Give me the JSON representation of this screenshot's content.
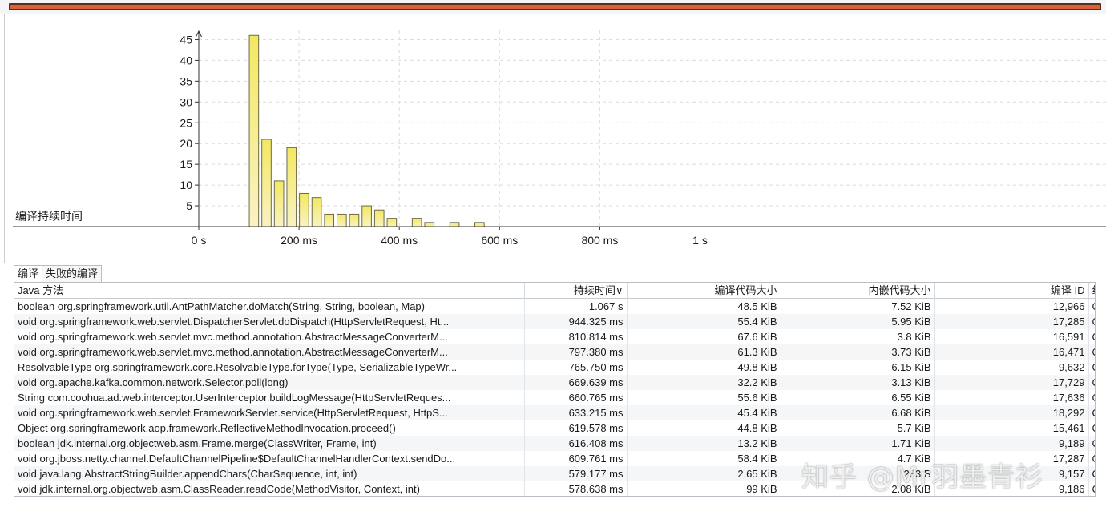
{
  "colors": {
    "bar_fill_top": "#f3e862",
    "bar_fill_bottom": "#f8f2c4",
    "bar_stroke": "#6e6a46",
    "accent_bar": "#d8613a",
    "grid": "#dcdcdc"
  },
  "chart_data": {
    "type": "bar",
    "ylabel": "编译持续时间",
    "x_tick_labels": [
      "0 s",
      "200 ms",
      "400 ms",
      "600 ms",
      "800 ms",
      "1 s"
    ],
    "x_tick_values_ms": [
      0,
      200,
      400,
      600,
      800,
      1000
    ],
    "y_ticks": [
      5,
      10,
      15,
      20,
      25,
      30,
      35,
      40,
      45
    ],
    "ylim": [
      0,
      47
    ],
    "xlim_ms": [
      0,
      1075
    ],
    "bin_width_ms": 25,
    "bins": [
      {
        "start_ms": 100,
        "count": 46
      },
      {
        "start_ms": 125,
        "count": 21
      },
      {
        "start_ms": 150,
        "count": 11
      },
      {
        "start_ms": 175,
        "count": 19
      },
      {
        "start_ms": 200,
        "count": 8
      },
      {
        "start_ms": 225,
        "count": 7
      },
      {
        "start_ms": 250,
        "count": 3
      },
      {
        "start_ms": 275,
        "count": 3
      },
      {
        "start_ms": 300,
        "count": 3
      },
      {
        "start_ms": 325,
        "count": 5
      },
      {
        "start_ms": 350,
        "count": 4
      },
      {
        "start_ms": 375,
        "count": 2
      },
      {
        "start_ms": 425,
        "count": 2
      },
      {
        "start_ms": 450,
        "count": 1
      },
      {
        "start_ms": 500,
        "count": 1
      },
      {
        "start_ms": 550,
        "count": 1
      }
    ],
    "grid": true,
    "legend": "none"
  },
  "tabs": [
    {
      "label": "编译",
      "active": true
    },
    {
      "label": "失败的编译",
      "active": false
    }
  ],
  "table": {
    "columns": [
      {
        "label": "Java 方法",
        "align": "l"
      },
      {
        "label": "持续时间∨",
        "align": "r"
      },
      {
        "label": "编译代码大小",
        "align": "r"
      },
      {
        "label": "内嵌代码大小",
        "align": "r"
      },
      {
        "label": "编译 ID",
        "align": "r"
      },
      {
        "label": "线",
        "align": "l"
      }
    ],
    "rows": [
      [
        "boolean org.springframework.util.AntPathMatcher.doMatch(String, String, boolean, Map)",
        "1.067 s",
        "48.5 KiB",
        "7.52 KiB",
        "12,966",
        "C"
      ],
      [
        "void org.springframework.web.servlet.DispatcherServlet.doDispatch(HttpServletRequest, Ht...",
        "944.325 ms",
        "55.4 KiB",
        "5.95 KiB",
        "17,285",
        "C"
      ],
      [
        "void org.springframework.web.servlet.mvc.method.annotation.AbstractMessageConverterM...",
        "810.814 ms",
        "67.6 KiB",
        "3.8 KiB",
        "16,591",
        "C"
      ],
      [
        "void org.springframework.web.servlet.mvc.method.annotation.AbstractMessageConverterM...",
        "797.380 ms",
        "61.3 KiB",
        "3.73 KiB",
        "16,471",
        "C"
      ],
      [
        "ResolvableType org.springframework.core.ResolvableType.forType(Type, SerializableTypeWr...",
        "765.750 ms",
        "49.8 KiB",
        "6.15 KiB",
        "9,632",
        "C"
      ],
      [
        "void org.apache.kafka.common.network.Selector.poll(long)",
        "669.639 ms",
        "32.2 KiB",
        "3.13 KiB",
        "17,729",
        "C"
      ],
      [
        "String com.coohua.ad.web.interceptor.UserInterceptor.buildLogMessage(HttpServletReques...",
        "660.765 ms",
        "55.6 KiB",
        "6.55 KiB",
        "17,636",
        "C"
      ],
      [
        "void org.springframework.web.servlet.FrameworkServlet.service(HttpServletRequest, HttpS...",
        "633.215 ms",
        "45.4 KiB",
        "6.68 KiB",
        "18,292",
        "C"
      ],
      [
        "Object org.springframework.aop.framework.ReflectiveMethodInvocation.proceed()",
        "619.578 ms",
        "44.8 KiB",
        "5.7 KiB",
        "15,461",
        "C"
      ],
      [
        "boolean jdk.internal.org.objectweb.asm.Frame.merge(ClassWriter, Frame, int)",
        "616.408 ms",
        "13.2 KiB",
        "1.71 KiB",
        "9,189",
        "C"
      ],
      [
        "void org.jboss.netty.channel.DefaultChannelPipeline$DefaultChannelHandlerContext.sendDo...",
        "609.761 ms",
        "58.4 KiB",
        "4.7 KiB",
        "17,287",
        "C"
      ],
      [
        "void java.lang.AbstractStringBuilder.appendChars(CharSequence, int, int)",
        "579.177 ms",
        "2.65 KiB",
        "283 B",
        "9,157",
        "C"
      ],
      [
        "void jdk.internal.org.objectweb.asm.ClassReader.readCode(MethodVisitor, Context, int)",
        "578.638 ms",
        "99 KiB",
        "2.08 KiB",
        "9,186",
        "C"
      ]
    ]
  },
  "watermark": "知乎 @Mr羽墨青衫"
}
